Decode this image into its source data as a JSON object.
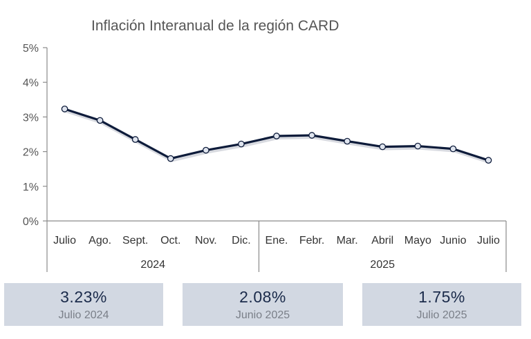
{
  "chart_data": {
    "type": "line",
    "title": "Inflación Interanual de la región CARD",
    "categories": [
      "Julio",
      "Ago.",
      "Sept.",
      "Oct.",
      "Nov.",
      "Dic.",
      "Ene.",
      "Febr.",
      "Mar.",
      "Abril",
      "Mayo",
      "Junio",
      "Julio"
    ],
    "groups": [
      {
        "label": "2024",
        "count": 6
      },
      {
        "label": "2025",
        "count": 7
      }
    ],
    "series": [
      {
        "values": [
          3.23,
          2.9,
          2.35,
          1.8,
          2.04,
          2.22,
          2.45,
          2.47,
          2.3,
          2.14,
          2.16,
          2.08,
          1.75
        ]
      }
    ],
    "y_ticks": [
      "0%",
      "1%",
      "2%",
      "3%",
      "4%",
      "5%"
    ],
    "ylim": [
      0,
      5
    ],
    "grid": false,
    "colors": {
      "line": "#0d1b3a",
      "marker_fill": "#dfe4ee"
    }
  },
  "cards": [
    {
      "value": "3.23%",
      "label": "Julio 2024"
    },
    {
      "value": "2.08%",
      "label": "Junio 2025"
    },
    {
      "value": "1.75%",
      "label": "Julio 2025"
    }
  ],
  "colors": {
    "card_bg": "#d2d8e2",
    "card_value": "#1a2a4a",
    "card_label": "#7a7f88"
  }
}
